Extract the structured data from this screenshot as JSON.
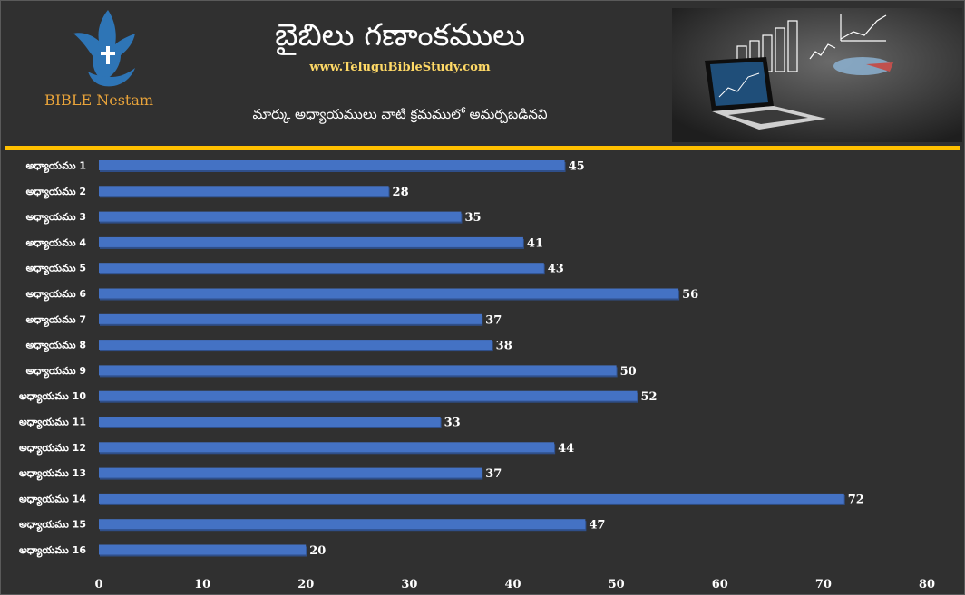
{
  "header": {
    "title": "బైబిలు గణాంకములు",
    "site": "www.TeluguBibleStudy.com",
    "subtitle": "మార్కు అధ్యాయములు వాటి క్రమములో అమర్చబడినవి",
    "logo_text": "BIBLE Nestam"
  },
  "colors": {
    "background": "#303030",
    "bar": "#4472c4",
    "bar_shadow": "#2f4f8a",
    "rule": "#ffc000",
    "accent_text": "#ffd966"
  },
  "icons": {
    "logo": "dove-cross-hand-icon",
    "photo": "laptop-charts-image"
  },
  "chart_data": {
    "type": "bar",
    "orientation": "horizontal",
    "categories": [
      "అధ్యాయము 1",
      "అధ్యాయము 2",
      "అధ్యాయము 3",
      "అధ్యాయము 4",
      "అధ్యాయము 5",
      "అధ్యాయము 6",
      "అధ్యాయము 7",
      "అధ్యాయము 8",
      "అధ్యాయము 9",
      "అధ్యాయము 10",
      "అధ్యాయము 11",
      "అధ్యాయము 12",
      "అధ్యాయము 13",
      "అధ్యాయము 14",
      "అధ్యాయము 15",
      "అధ్యాయము 16"
    ],
    "values": [
      45,
      28,
      35,
      41,
      43,
      56,
      37,
      38,
      50,
      52,
      33,
      44,
      37,
      72,
      47,
      20
    ],
    "xlim": [
      0,
      80
    ],
    "xticks": [
      0,
      10,
      20,
      30,
      40,
      50,
      60,
      70,
      80
    ],
    "data_labels": true,
    "grid": false,
    "legend": "none"
  }
}
